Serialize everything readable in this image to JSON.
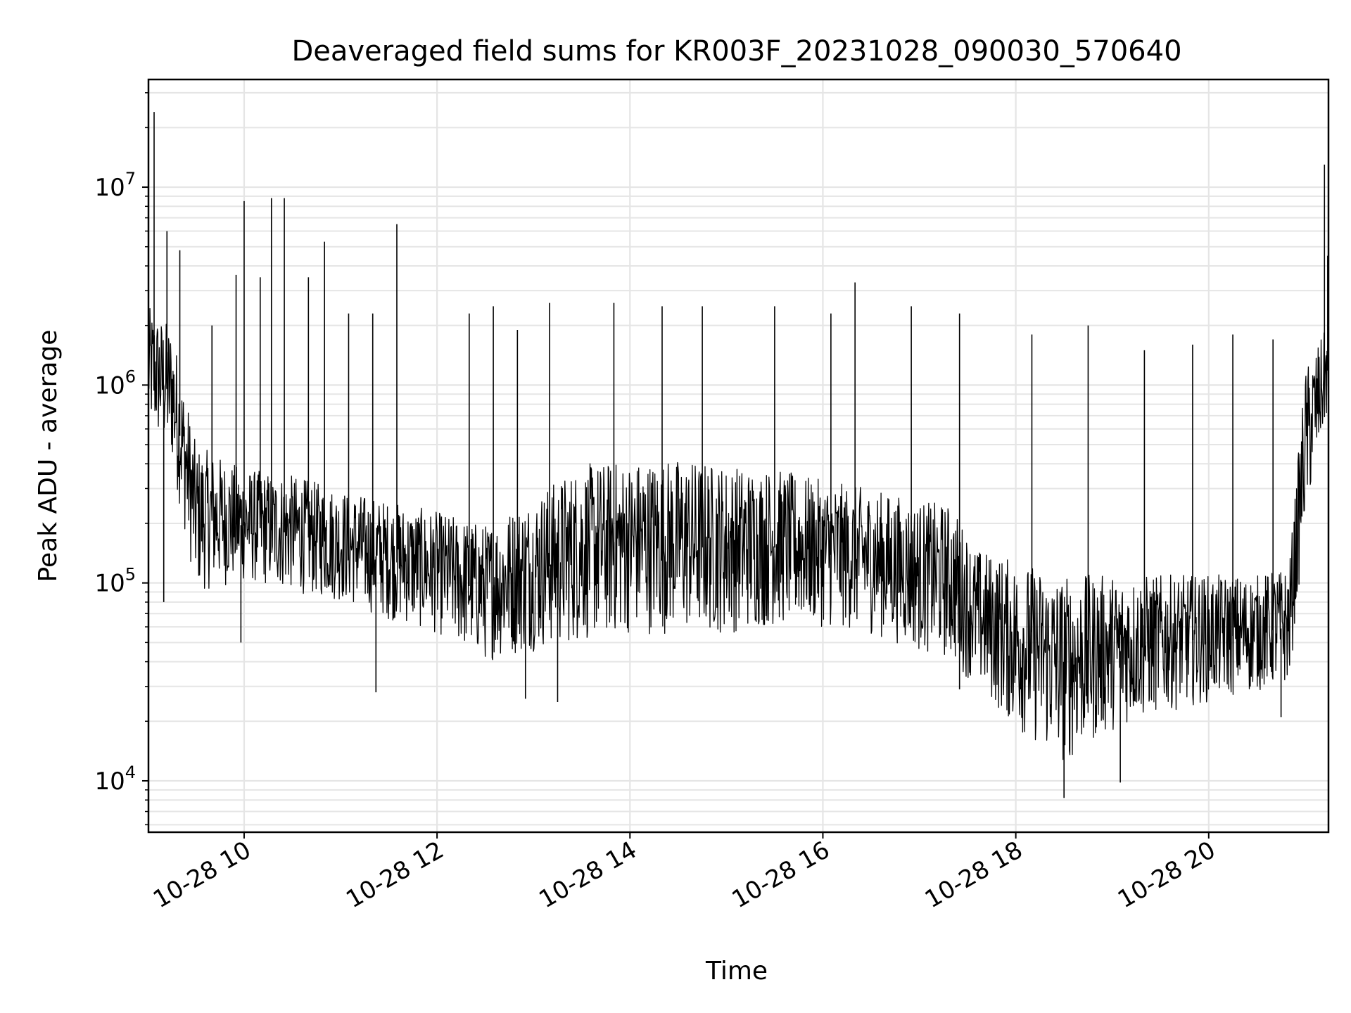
{
  "chart_data": {
    "type": "line",
    "title": "Deaveraged field sums for KR003F_20231028_090030_570640",
    "xlabel": "Time",
    "ylabel": "Peak ADU - average",
    "x_scale": "time",
    "y_scale": "log",
    "xlim": [
      "2023-10-28 09:00:30",
      "2023-10-28 21:14:30"
    ],
    "ylim": [
      5500,
      35000000
    ],
    "x_ticks": [
      {
        "label": "10-28 10",
        "time": "2023-10-28 10:00"
      },
      {
        "label": "10-28 12",
        "time": "2023-10-28 12:00"
      },
      {
        "label": "10-28 14",
        "time": "2023-10-28 14:00"
      },
      {
        "label": "10-28 16",
        "time": "2023-10-28 16:00"
      },
      {
        "label": "10-28 18",
        "time": "2023-10-28 18:00"
      },
      {
        "label": "10-28 20",
        "time": "2023-10-28 20:00"
      }
    ],
    "y_ticks": [
      {
        "base": "10",
        "exp": "4",
        "value": 10000
      },
      {
        "base": "10",
        "exp": "5",
        "value": 100000
      },
      {
        "base": "10",
        "exp": "6",
        "value": 1000000
      },
      {
        "base": "10",
        "exp": "7",
        "value": 10000000
      }
    ],
    "grid": true,
    "line_color": "#000000",
    "grid_color": "#e5e5e5",
    "series": [
      {
        "profile": [
          {
            "time": "2023-10-28 09:00",
            "low": 600000,
            "high": 2500000
          },
          {
            "time": "2023-10-28 09:15",
            "low": 400000,
            "high": 2000000
          },
          {
            "time": "2023-10-28 09:30",
            "low": 90000,
            "high": 500000
          },
          {
            "time": "2023-10-28 10:00",
            "low": 100000,
            "high": 380000
          },
          {
            "time": "2023-10-28 10:30",
            "low": 90000,
            "high": 350000
          },
          {
            "time": "2023-10-28 11:00",
            "low": 80000,
            "high": 300000
          },
          {
            "time": "2023-10-28 11:30",
            "low": 65000,
            "high": 260000
          },
          {
            "time": "2023-10-28 12:00",
            "low": 55000,
            "high": 230000
          },
          {
            "time": "2023-10-28 12:30",
            "low": 40000,
            "high": 200000
          },
          {
            "time": "2023-10-28 13:00",
            "low": 45000,
            "high": 280000
          },
          {
            "time": "2023-10-28 13:30",
            "low": 50000,
            "high": 400000
          },
          {
            "time": "2023-10-28 14:00",
            "low": 55000,
            "high": 420000
          },
          {
            "time": "2023-10-28 14:30",
            "low": 55000,
            "high": 430000
          },
          {
            "time": "2023-10-28 15:00",
            "low": 55000,
            "high": 400000
          },
          {
            "time": "2023-10-28 15:30",
            "low": 60000,
            "high": 380000
          },
          {
            "time": "2023-10-28 16:00",
            "low": 60000,
            "high": 330000
          },
          {
            "time": "2023-10-28 16:30",
            "low": 55000,
            "high": 300000
          },
          {
            "time": "2023-10-28 17:00",
            "low": 45000,
            "high": 260000
          },
          {
            "time": "2023-10-28 17:20",
            "low": 40000,
            "high": 250000
          },
          {
            "time": "2023-10-28 17:35",
            "low": 30000,
            "high": 150000
          },
          {
            "time": "2023-10-28 18:00",
            "low": 18000,
            "high": 130000
          },
          {
            "time": "2023-10-28 18:30",
            "low": 12000,
            "high": 110000
          },
          {
            "time": "2023-10-28 19:00",
            "low": 18000,
            "high": 110000
          },
          {
            "time": "2023-10-28 19:30",
            "low": 22000,
            "high": 110000
          },
          {
            "time": "2023-10-28 20:00",
            "low": 25000,
            "high": 110000
          },
          {
            "time": "2023-10-28 20:30",
            "low": 28000,
            "high": 110000
          },
          {
            "time": "2023-10-28 20:50",
            "low": 30000,
            "high": 120000
          },
          {
            "time": "2023-10-28 21:00",
            "low": 200000,
            "high": 1200000
          },
          {
            "time": "2023-10-28 21:14",
            "low": 700000,
            "high": 2000000
          }
        ],
        "spikes": [
          {
            "time": "2023-10-28 09:04",
            "value": 24000000
          },
          {
            "time": "2023-10-28 09:12",
            "value": 6000000
          },
          {
            "time": "2023-10-28 09:20",
            "value": 4800000
          },
          {
            "time": "2023-10-28 09:40",
            "value": 2000000
          },
          {
            "time": "2023-10-28 09:55",
            "value": 3600000
          },
          {
            "time": "2023-10-28 10:00",
            "value": 8500000
          },
          {
            "time": "2023-10-28 10:10",
            "value": 3500000
          },
          {
            "time": "2023-10-28 10:17",
            "value": 8800000
          },
          {
            "time": "2023-10-28 10:25",
            "value": 8800000
          },
          {
            "time": "2023-10-28 10:40",
            "value": 3500000
          },
          {
            "time": "2023-10-28 10:50",
            "value": 5300000
          },
          {
            "time": "2023-10-28 11:05",
            "value": 2300000
          },
          {
            "time": "2023-10-28 11:20",
            "value": 2300000
          },
          {
            "time": "2023-10-28 11:35",
            "value": 6500000
          },
          {
            "time": "2023-10-28 12:20",
            "value": 2300000
          },
          {
            "time": "2023-10-28 12:35",
            "value": 2500000
          },
          {
            "time": "2023-10-28 12:50",
            "value": 1900000
          },
          {
            "time": "2023-10-28 13:10",
            "value": 2600000
          },
          {
            "time": "2023-10-28 13:50",
            "value": 2600000
          },
          {
            "time": "2023-10-28 14:20",
            "value": 2500000
          },
          {
            "time": "2023-10-28 14:45",
            "value": 2500000
          },
          {
            "time": "2023-10-28 15:30",
            "value": 2500000
          },
          {
            "time": "2023-10-28 16:05",
            "value": 2300000
          },
          {
            "time": "2023-10-28 16:20",
            "value": 3300000
          },
          {
            "time": "2023-10-28 16:55",
            "value": 2500000
          },
          {
            "time": "2023-10-28 17:25",
            "value": 2300000
          },
          {
            "time": "2023-10-28 18:10",
            "value": 1800000
          },
          {
            "time": "2023-10-28 18:45",
            "value": 2000000
          },
          {
            "time": "2023-10-28 19:20",
            "value": 1500000
          },
          {
            "time": "2023-10-28 19:50",
            "value": 1600000
          },
          {
            "time": "2023-10-28 20:15",
            "value": 1800000
          },
          {
            "time": "2023-10-28 20:40",
            "value": 1700000
          },
          {
            "time": "2023-10-28 21:12",
            "value": 13000000
          },
          {
            "time": "2023-10-28 21:14",
            "value": 4500000
          }
        ],
        "dips": [
          {
            "time": "2023-10-28 09:10",
            "value": 80000
          },
          {
            "time": "2023-10-28 09:58",
            "value": 50000
          },
          {
            "time": "2023-10-28 11:22",
            "value": 28000
          },
          {
            "time": "2023-10-28 12:55",
            "value": 26000
          },
          {
            "time": "2023-10-28 13:15",
            "value": 25000
          },
          {
            "time": "2023-10-28 17:25",
            "value": 29000
          },
          {
            "time": "2023-10-28 18:30",
            "value": 8200
          },
          {
            "time": "2023-10-28 19:05",
            "value": 9800
          },
          {
            "time": "2023-10-28 20:45",
            "value": 21000
          }
        ]
      }
    ]
  }
}
